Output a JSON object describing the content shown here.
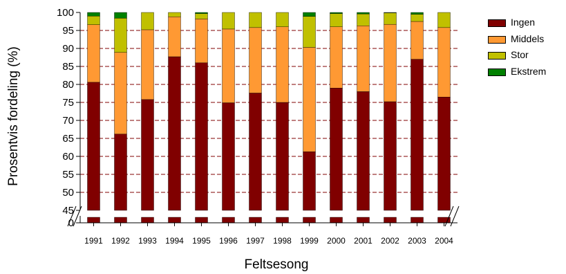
{
  "chart_data": {
    "type": "bar",
    "stacked": true,
    "percent": true,
    "xlabel": "Feltsesong",
    "ylabel": "Prosentvis fordeling (%)",
    "categories": [
      "1991",
      "1992",
      "1993",
      "1994",
      "1995",
      "1996",
      "1997",
      "1998",
      "1999",
      "2000",
      "2001",
      "2002",
      "2003",
      "2004"
    ],
    "y_axis_break": {
      "lower_ticks": [
        0
      ],
      "upper_range": [
        45,
        100
      ]
    },
    "yticks": [
      0,
      45,
      50,
      55,
      60,
      65,
      70,
      75,
      80,
      85,
      90,
      95,
      100
    ],
    "grid": "horizontal dashed",
    "legend_position": "top-right",
    "series": [
      {
        "name": "Ingen",
        "color": "#800000",
        "values": [
          80.6,
          66.2,
          75.8,
          87.7,
          86.0,
          74.9,
          77.6,
          75.0,
          61.3,
          79.0,
          78.0,
          75.2,
          87.0,
          76.5
        ]
      },
      {
        "name": "Middels",
        "color": "#ff9933",
        "values": [
          16.0,
          22.7,
          19.4,
          11.1,
          12.2,
          20.5,
          18.2,
          21.0,
          29.0,
          17.0,
          18.3,
          21.5,
          10.5,
          19.3
        ]
      },
      {
        "name": "Stor",
        "color": "#c0c000",
        "values": [
          2.4,
          9.5,
          4.8,
          1.2,
          1.5,
          4.6,
          4.2,
          4.0,
          8.6,
          3.7,
          3.3,
          3.2,
          2.0,
          4.2
        ]
      },
      {
        "name": "Ekstrem",
        "color": "#008000",
        "values": [
          1.0,
          1.6,
          0.0,
          0.0,
          0.3,
          0.0,
          0.0,
          0.0,
          1.1,
          0.3,
          0.4,
          0.1,
          0.5,
          0.0
        ]
      }
    ]
  }
}
